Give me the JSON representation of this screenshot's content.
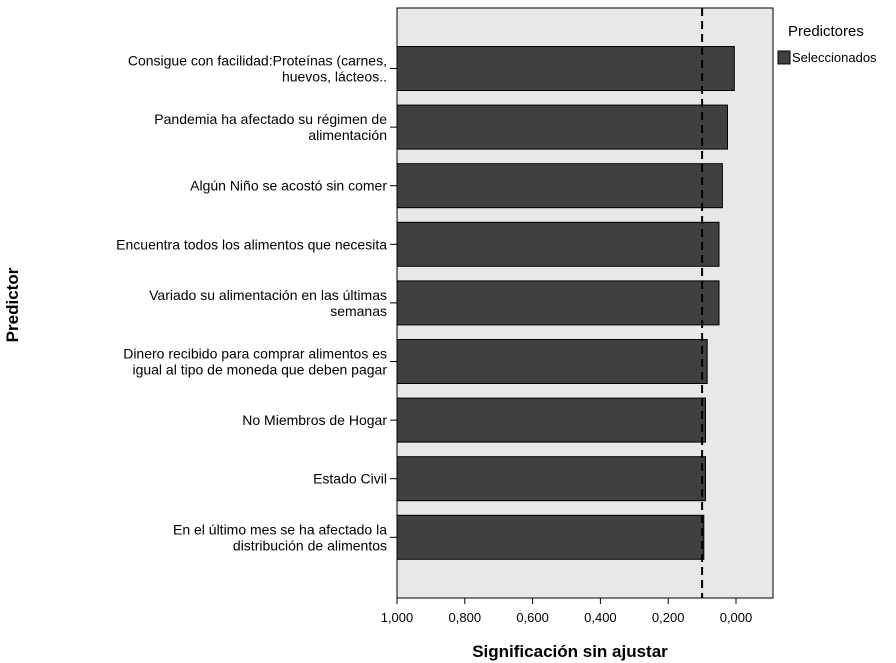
{
  "chart_data": {
    "type": "bar",
    "orientation": "horizontal",
    "xlabel": "Significación sin ajustar",
    "ylabel": "Predictor",
    "x_reversed": true,
    "xlim": [
      1.0,
      0.0
    ],
    "xticks": [
      1.0,
      0.8,
      0.6,
      0.4,
      0.2,
      0.0
    ],
    "xtick_labels": [
      "1,000",
      "0,800",
      "0,600",
      "0,400",
      "0,200",
      "0,000"
    ],
    "reference_line": 0.1,
    "categories": [
      [
        "Consigue con facilidad:Proteínas (carnes,",
        "huevos, lácteos.."
      ],
      [
        "Pandemia ha afectado su régimen de",
        "alimentación"
      ],
      [
        "Algún Niño se acostó sin comer"
      ],
      [
        "Encuentra todos los alimentos que necesita"
      ],
      [
        "Variado su alimentación en las últimas",
        "semanas"
      ],
      [
        "Dinero recibido para comprar alimentos es",
        "igual al tipo de moneda que deben pagar"
      ],
      [
        "No Miembros de Hogar"
      ],
      [
        "Estado Civil"
      ],
      [
        "En el último mes se ha afectado la",
        "distribución de alimentos"
      ]
    ],
    "series": [
      {
        "name": "Seleccionados",
        "color": "#404040",
        "values": [
          0.005,
          0.025,
          0.04,
          0.05,
          0.05,
          0.085,
          0.09,
          0.09,
          0.095
        ]
      }
    ],
    "legend": {
      "title": "Predictores",
      "position": "top-right"
    },
    "colors": {
      "plot_background": "#e8e8e8",
      "bar_fill": "#404040",
      "bar_stroke": "#000000"
    }
  }
}
